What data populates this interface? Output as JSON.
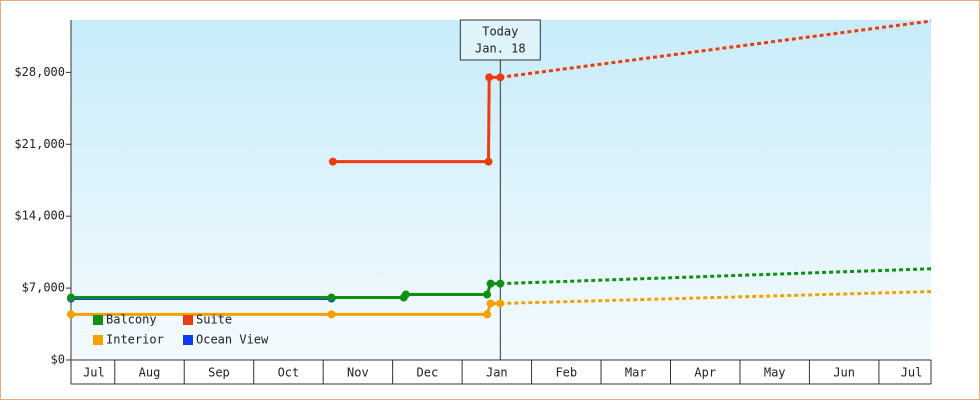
{
  "chart_data": {
    "type": "line",
    "xlim": [
      -0.13,
      12.25
    ],
    "xticks": [
      {
        "value": 0.2,
        "label": "Jul"
      },
      {
        "value": 1,
        "label": "Aug"
      },
      {
        "value": 2,
        "label": "Sep"
      },
      {
        "value": 3,
        "label": "Oct"
      },
      {
        "value": 4,
        "label": "Nov"
      },
      {
        "value": 5,
        "label": "Dec"
      },
      {
        "value": 6,
        "label": "Jan"
      },
      {
        "value": 7,
        "label": "Feb"
      },
      {
        "value": 8,
        "label": "Mar"
      },
      {
        "value": 9,
        "label": "Apr"
      },
      {
        "value": 10,
        "label": "May"
      },
      {
        "value": 11,
        "label": "Jun"
      },
      {
        "value": 11.97,
        "label": "Jul"
      }
    ],
    "ylim": [
      0,
      33100
    ],
    "yticks": [
      {
        "value": 0,
        "label": "$0"
      },
      {
        "value": 7000,
        "label": "$7,000"
      },
      {
        "value": 14000,
        "label": "$14,000"
      },
      {
        "value": 21000,
        "label": "$21,000"
      },
      {
        "value": 28000,
        "label": "$28,000"
      }
    ],
    "today": {
      "x": 6.05,
      "label": [
        "Today",
        "Jan. 18"
      ]
    },
    "legend": "bottom-left",
    "series": [
      {
        "name": "Balcony",
        "color": "#109010",
        "x": [
          -0.13,
          3.62,
          4.66,
          4.69,
          5.86,
          5.91,
          6.05,
          12.25
        ],
        "values": [
          6083,
          6083,
          6083,
          6372,
          6372,
          7434,
          7434,
          8883
        ]
      },
      {
        "name": "Suite",
        "color": "#ee3a10",
        "x": [
          3.64,
          5.88,
          5.89,
          6.05,
          12.25
        ],
        "values": [
          19310,
          19310,
          27520,
          27520,
          33000
        ]
      },
      {
        "name": "Interior",
        "color": "#f5a000",
        "x": [
          -0.13,
          3.62,
          5.86,
          5.91,
          6.05,
          12.25
        ],
        "values": [
          4441,
          4441,
          4441,
          5503,
          5503,
          6662
        ]
      },
      {
        "name": "Ocean View",
        "color": "#0a3ef0",
        "x": [
          -0.13,
          3.62
        ],
        "values": [
          5986,
          5986
        ]
      }
    ]
  }
}
